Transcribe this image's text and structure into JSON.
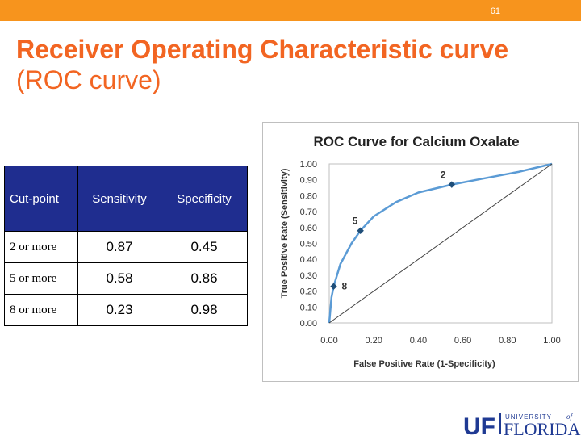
{
  "header": {
    "slide_number": "61",
    "accent": "#f7941d"
  },
  "title": {
    "line1": "Receiver Operating Characteristic curve",
    "line2": "(ROC curve)",
    "color": "#f26522"
  },
  "table": {
    "headers": [
      "Cut-point",
      "Sensitivity",
      "Specificity"
    ],
    "rows": [
      {
        "label": "2 or more",
        "sensitivity": "0.87",
        "specificity": "0.45"
      },
      {
        "label": "5 or more",
        "sensitivity": "0.58",
        "specificity": "0.86"
      },
      {
        "label": "8 or more",
        "sensitivity": "0.23",
        "specificity": "0.98"
      }
    ],
    "header_bg": "#1f2d8f"
  },
  "chart_data": {
    "type": "line",
    "title": "ROC Curve for Calcium Oxalate",
    "xlabel": "False Positive Rate (1-Specificity)",
    "ylabel": "True Positive Rate (Sensitivity)",
    "xlim": [
      0,
      1
    ],
    "ylim": [
      0,
      1
    ],
    "x_ticks": [
      "0.00",
      "0.20",
      "0.40",
      "0.60",
      "0.80",
      "1.00"
    ],
    "y_ticks": [
      "0.00",
      "0.10",
      "0.20",
      "0.30",
      "0.40",
      "0.50",
      "0.60",
      "0.70",
      "0.80",
      "0.90",
      "1.00"
    ],
    "series": [
      {
        "name": "ROC",
        "x": [
          0,
          0.005,
          0.01,
          0.02,
          0.05,
          0.1,
          0.14,
          0.2,
          0.3,
          0.4,
          0.55,
          0.7,
          0.85,
          1.0
        ],
        "y": [
          0,
          0.08,
          0.16,
          0.23,
          0.37,
          0.5,
          0.58,
          0.67,
          0.76,
          0.82,
          0.87,
          0.91,
          0.95,
          1.0
        ]
      },
      {
        "name": "Chance",
        "x": [
          0,
          1
        ],
        "y": [
          0,
          1
        ]
      }
    ],
    "points": [
      {
        "label": "2",
        "x": 0.55,
        "y": 0.87
      },
      {
        "label": "5",
        "x": 0.14,
        "y": 0.58
      },
      {
        "label": "8",
        "x": 0.02,
        "y": 0.23
      }
    ],
    "line_color": "#5b9bd5",
    "marker_color": "#1f4e79"
  },
  "logo": {
    "uf": "UF",
    "university": "UNIVERSITY",
    "of": "of",
    "florida": "FLORIDA"
  }
}
